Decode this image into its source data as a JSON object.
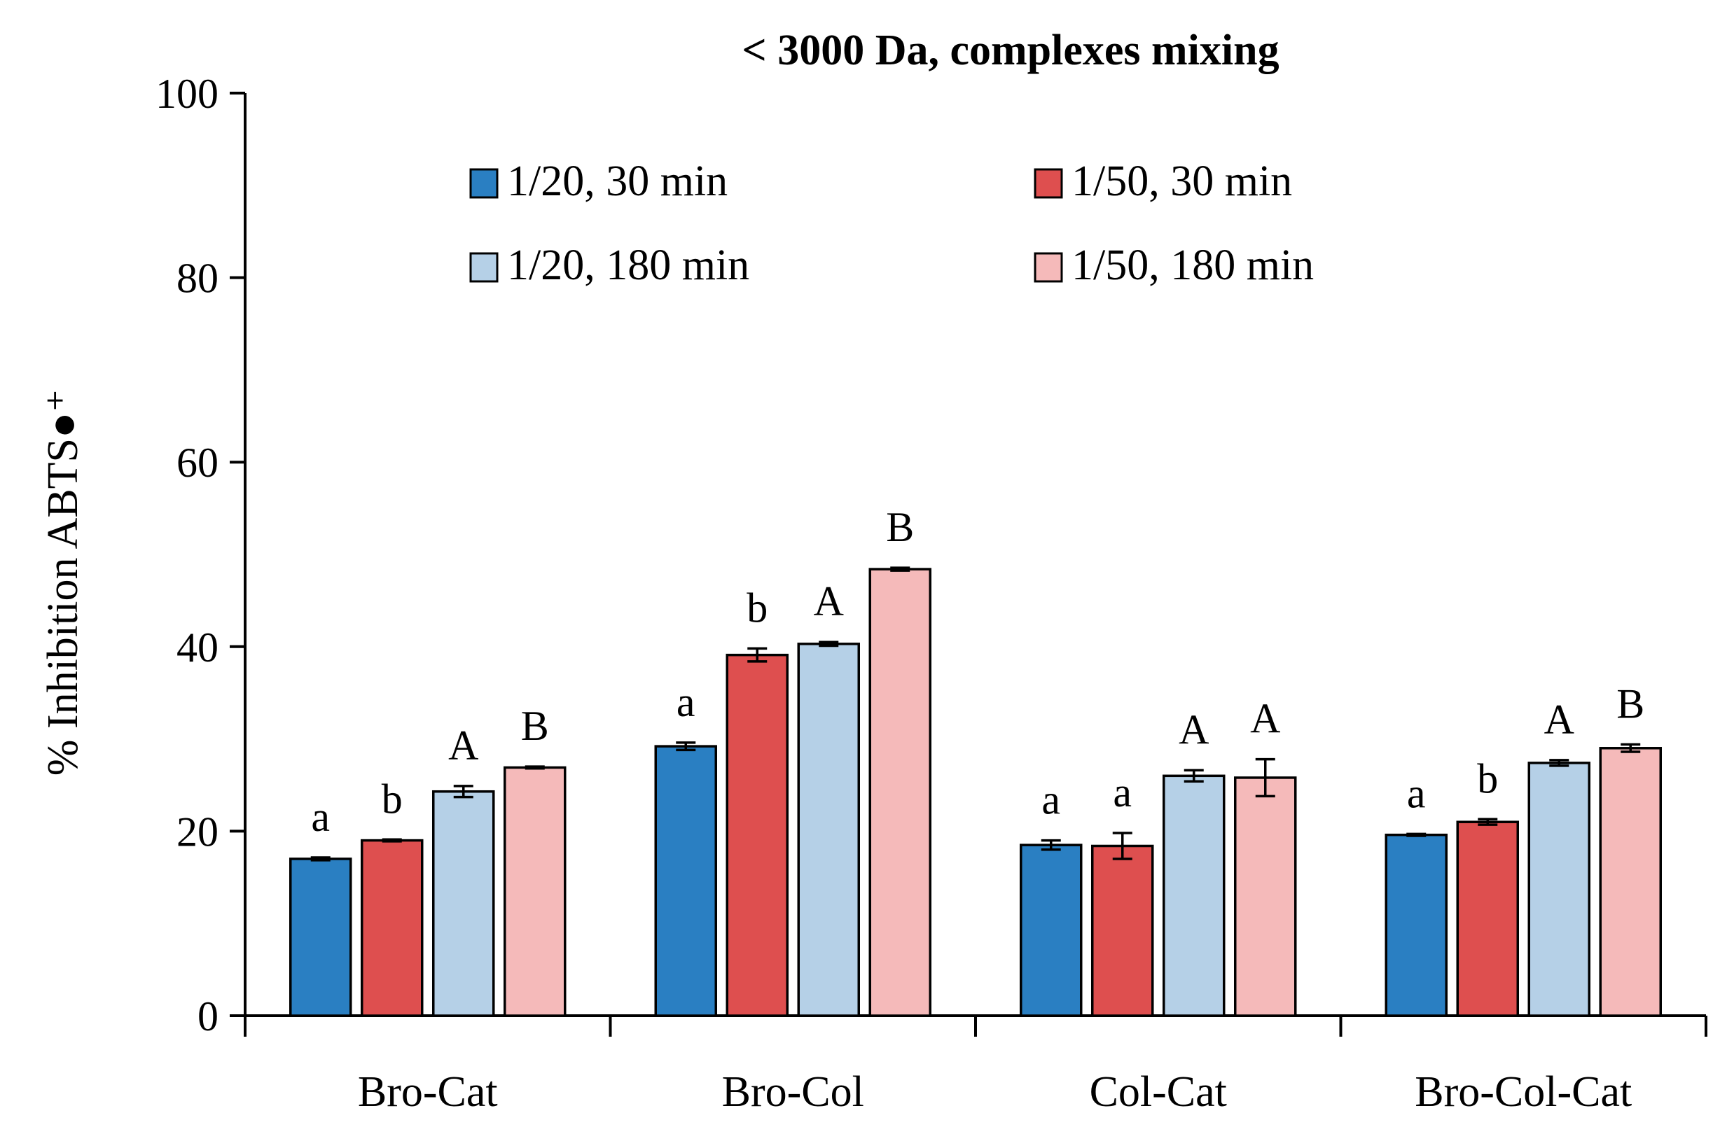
{
  "chart_data": {
    "type": "bar",
    "title": "< 3000 Da, complexes mixing",
    "xlabel": "",
    "ylabel": "% Inhibition ABTS●⁺",
    "ylim": [
      0,
      100
    ],
    "yticks": [
      0,
      20,
      40,
      60,
      80,
      100
    ],
    "grid": false,
    "legend_position": "top",
    "categories": [
      "Bro-Cat",
      "Bro-Col",
      "Col-Cat",
      "Bro-Col-Cat"
    ],
    "series": [
      {
        "name": "1/20, 30 min",
        "color": "#2a7fc2",
        "values": [
          17.0,
          29.2,
          18.5,
          19.6
        ],
        "errors": [
          0.15,
          0.4,
          0.5,
          0.1
        ],
        "labels": [
          "a",
          "a",
          "a",
          "a"
        ]
      },
      {
        "name": "1/50, 30 min",
        "color": "#de4f4f",
        "values": [
          19.0,
          39.1,
          18.4,
          21.0
        ],
        "errors": [
          0.1,
          0.7,
          1.4,
          0.3
        ],
        "labels": [
          "b",
          "b",
          "a",
          "b"
        ]
      },
      {
        "name": "1/20, 180 min",
        "color": "#b5d0e7",
        "values": [
          24.3,
          40.3,
          26.0,
          27.4
        ],
        "errors": [
          0.6,
          0.2,
          0.6,
          0.3
        ],
        "labels": [
          "A",
          "A",
          "A",
          "A"
        ]
      },
      {
        "name": "1/50, 180 min",
        "color": "#f5baba",
        "values": [
          26.9,
          48.4,
          25.8,
          29.0
        ],
        "errors": [
          0.1,
          0.15,
          2.0,
          0.4
        ],
        "labels": [
          "B",
          "B",
          "A",
          "B"
        ]
      }
    ]
  }
}
